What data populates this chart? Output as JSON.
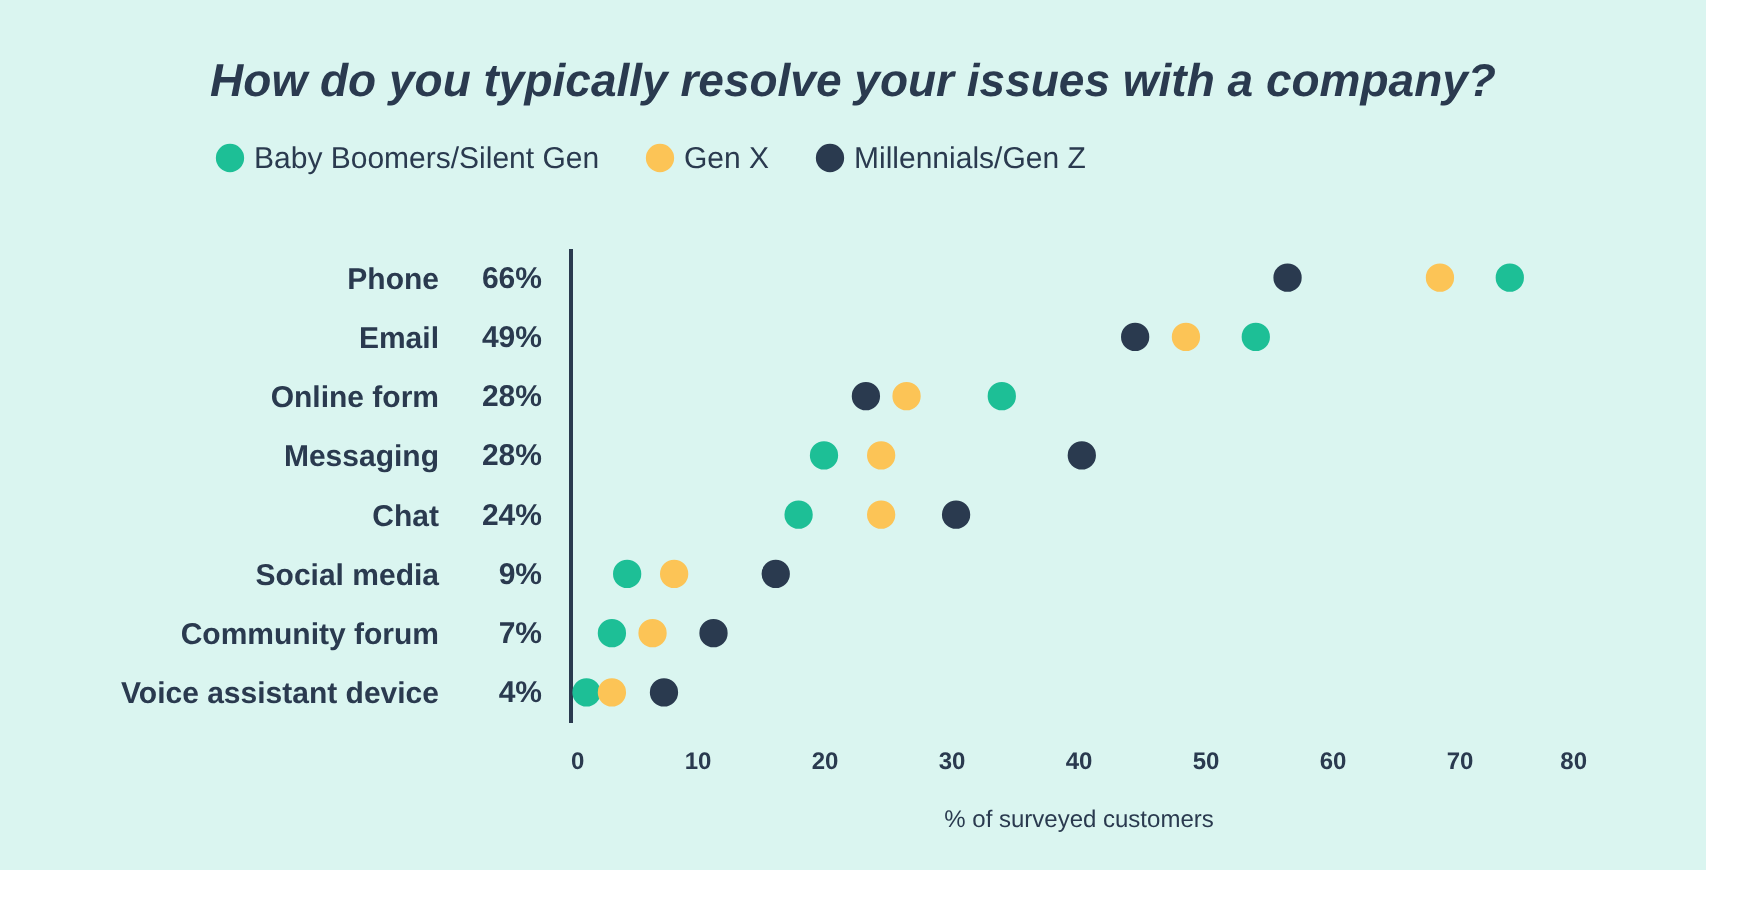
{
  "chart_data": {
    "type": "scatter",
    "orientation": "horizontal",
    "title": "How do you typically resolve your issues with a company?",
    "xlabel": "% of surveyed customers",
    "categories": [
      "Phone",
      "Email",
      "Online form",
      "Messaging",
      "Chat",
      "Social media",
      "Community forum",
      "Voice assistant device"
    ],
    "series": [
      {
        "name": "Baby Boomers/Silent Gen",
        "color": "#1dbf96",
        "values": [
          74,
          54,
          34,
          20,
          18,
          4.5,
          3.3,
          1.3
        ]
      },
      {
        "name": "Gen X",
        "color": "#fcc456",
        "values": [
          68.5,
          48.5,
          26.5,
          24.5,
          24.5,
          8.2,
          6.5,
          3.3
        ]
      },
      {
        "name": "Millennials/Gen Z",
        "color": "#2a3a4f",
        "values": [
          56.5,
          44.5,
          23.3,
          40.3,
          30.4,
          16.2,
          11.3,
          7.4
        ]
      }
    ],
    "annotations": [
      "66%",
      "49%",
      "28%",
      "28%",
      "24%",
      "9%",
      "7%",
      "4%"
    ],
    "xlim": [
      0,
      80
    ],
    "xticks": [
      0,
      10,
      20,
      30,
      40,
      50,
      60,
      70,
      80
    ],
    "marker": "circle",
    "legend": "top left",
    "grid": false
  }
}
